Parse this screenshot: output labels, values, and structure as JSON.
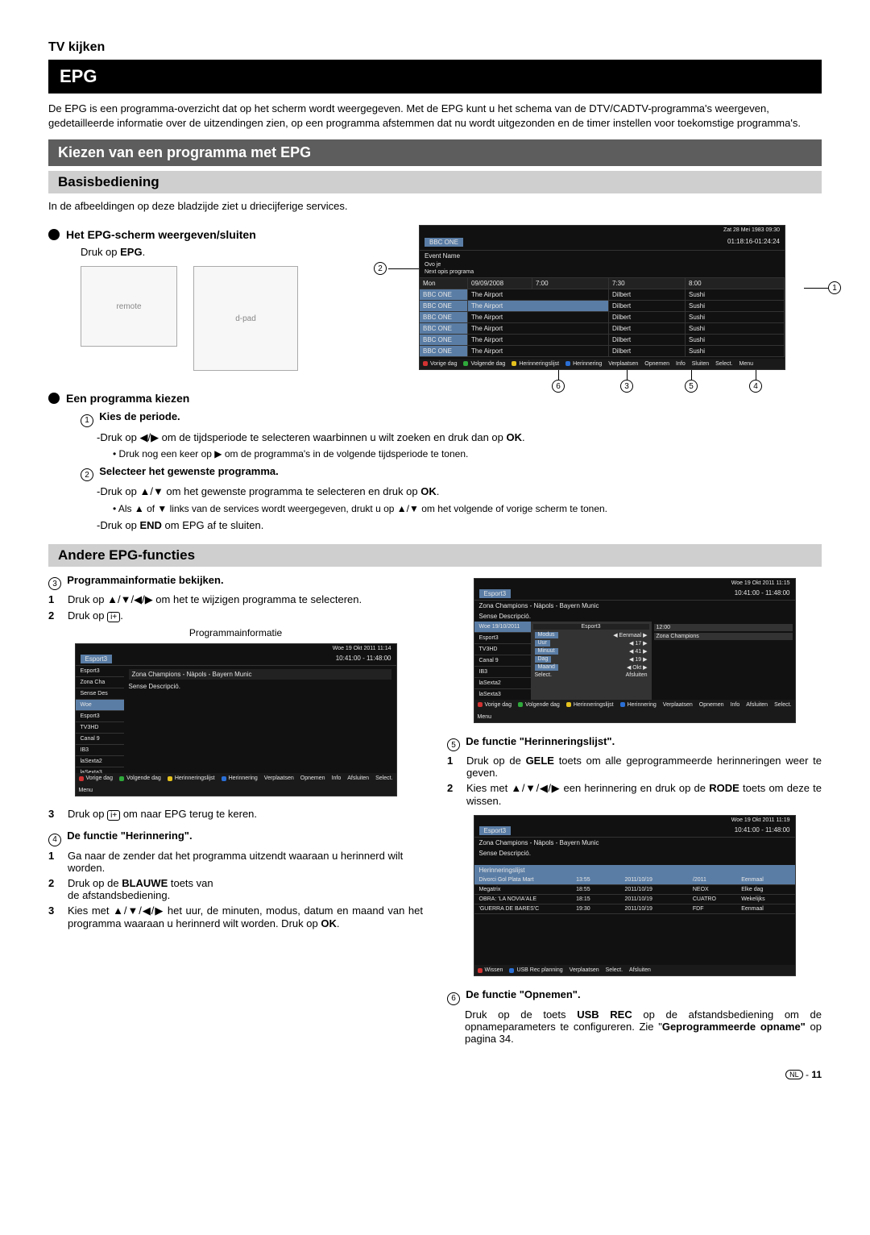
{
  "header": {
    "section": "TV kijken",
    "title": "EPG"
  },
  "intro": "De EPG is een programma-overzicht dat op het scherm wordt weergegeven. Met de EPG kunt u het schema van de DTV/CADTV-programma's weergeven, gedetailleerde informatie over de uitzendingen zien, op een programma afstemmen dat nu wordt uitgezonden en de timer instellen voor toekomstige programma's.",
  "banner1": "Kiezen van een programma met EPG",
  "banner2": "Basisbediening",
  "basis_text": "In de afbeeldingen op deze bladzijde ziet u driecijferige services.",
  "sub1": "Het EPG-scherm weergeven/sluiten",
  "sub1_text_a": "Druk op ",
  "sub1_text_b": "EPG",
  "sub1_text_c": ".",
  "sub2": "Een programma kiezen",
  "step1_label": "Kies de periode.",
  "step1_line1_a": "-Druk op ◀/▶ om de tijdsperiode te selecteren waarbinnen u wilt zoeken en druk dan op ",
  "step1_line1_b": "OK",
  "step1_line1_c": ".",
  "step1_bullet": "Druk nog een keer op ▶ om de programma's in de volgende tijdsperiode te tonen.",
  "step2_label": "Selecteer het gewenste programma.",
  "step2_line1_a": "-Druk op ▲/▼ om het gewenste programma te selecteren en druk op ",
  "step2_line1_b": "OK",
  "step2_line1_c": ".",
  "step2_bullet": "Als ▲ of ▼ links van de services wordt weergegeven, drukt u op ▲/▼ om het volgende of vorige scherm te tonen.",
  "step2_line3_a": "-Druk op ",
  "step2_line3_b": "END",
  "step2_line3_c": " om EPG af te sluiten.",
  "banner3": "Andere EPG-functies",
  "f3_label": "Programmainformatie bekijken.",
  "f3_1": "Druk op ▲/▼/◀/▶ om het te wijzigen programma te selecteren.",
  "f3_2_a": "Druk op ",
  "f3_2_b": ".",
  "f3_caption": "Programmainformatie",
  "f3_3_a": "Druk op ",
  "f3_3_b": " om naar EPG terug te keren.",
  "f4_label": "De functie \"Herinnering\".",
  "f4_1": "Ga naar de zender dat het programma uitzendt waaraan u herinnerd wilt worden.",
  "f4_2_a": "Druk op de ",
  "f4_2_b": "BLAUWE",
  "f4_2_c": " toets van",
  "f4_2d": "de afstandsbediening.",
  "f4_3_a": "Kies met ▲/▼/◀/▶ het uur, de minuten, modus, datum en maand van het programma waaraan u herinnerd wilt worden. Druk op ",
  "f4_3_b": "OK",
  "f4_3_c": ".",
  "f5_label": "De functie \"Herinneringslijst\".",
  "f5_1_a": "Druk op de ",
  "f5_1_b": "GELE",
  "f5_1_c": " toets om alle geprogrammeerde herinneringen weer te geven.",
  "f5_2_a": "Kies met ▲/▼/◀/▶ een herinnering en druk op de ",
  "f5_2_b": "RODE",
  "f5_2_c": " toets om deze te wissen.",
  "f6_label": "De functie \"Opnemen\".",
  "f6_text_a": "Druk op de toets ",
  "f6_text_b": "USB REC",
  "f6_text_c": " op de afstandsbediening om de opnameparameters te configureren. Zie \"",
  "f6_text_d": "Geprogrammeerde opname\"",
  "f6_text_e": " op pagina 34.",
  "page_lang": "NL",
  "page_dash": " - ",
  "page_num": "11",
  "epg": {
    "date": "Zat 28 Mei 1983 09:30",
    "channel": "BBC ONE",
    "timerange": "01:18:16-01:24:24",
    "event": "Event Name",
    "ovoje": "Ovo je",
    "next": "Next opis programa",
    "day": "Mon",
    "fulldate": "09/09/2008",
    "t1": "7:00",
    "t2": "7:30",
    "t3": "8:00",
    "rows": [
      {
        "ch": "BBC ONE",
        "p1": "The Airport",
        "p2": "Dilbert",
        "p3": "Sushi"
      },
      {
        "ch": "BBC ONE",
        "p1": "The Airport",
        "p2": "Dilbert",
        "p3": "Sushi"
      },
      {
        "ch": "BBC ONE",
        "p1": "The Airport",
        "p2": "Dilbert",
        "p3": "Sushi"
      },
      {
        "ch": "BBC ONE",
        "p1": "The Airport",
        "p2": "Dilbert",
        "p3": "Sushi"
      },
      {
        "ch": "BBC ONE",
        "p1": "The Airport",
        "p2": "Dilbert",
        "p3": "Sushi"
      },
      {
        "ch": "BBC ONE",
        "p1": "The Airport",
        "p2": "Dilbert",
        "p3": "Sushi"
      }
    ],
    "footer": {
      "red1": "Vorige dag",
      "green1": "Volgende dag",
      "yellow1": "Herinneringslijst",
      "blue1": "Herinnering",
      "verpl": "Verplaatsen",
      "opn": "Opnemen",
      "info": "Info",
      "sluit": "Sluiten",
      "sel": "Select.",
      "menu": "Menu"
    }
  },
  "screen_a": {
    "date": "Woe 19 Okt 2011 11:14",
    "ch": "Esport3",
    "time": "10:41:00 - 11:48:00",
    "prog": "Zona Champions - Nàpols - Bayern Munic",
    "desc": "Sense Descripció.",
    "day": "Woe",
    "list": [
      "Esport3",
      "Zona Cha",
      "Sense Des",
      "Woe",
      "Esport3",
      "TV3HD",
      "Canal 9",
      "IB3",
      "laSexta2",
      "laSexta3"
    ],
    "footer": {
      "vp": "Vorige dag",
      "vd": "Volgende dag",
      "hl": "Herinneringslijst",
      "h": "Herinnering",
      "ver": "Verplaatsen",
      "opn": "Opnemen",
      "info": "Info",
      "afs": "Afsluiten",
      "sel": "Select.",
      "menu": "Menu"
    }
  },
  "screen_b": {
    "date": "Woe 19 Okt 2011 11:15",
    "ch": "Esport3",
    "time": "10:41:00 - 11:48:00",
    "prog": "Zona Champions - Nàpols - Bayern Munic",
    "desc": "Sense Descripció.",
    "pop": {
      "title": "Esport3",
      "modus": "Modus",
      "eenmaal": "Eenmaal",
      "uur": "Uur",
      "v1": "17",
      "min": "Minuut",
      "v2": "41",
      "dag": "Dag",
      "v3": "19",
      "maand": "Maand",
      "v4": "Okt",
      "sel": "Select.",
      "afs": "Afsluiten",
      "zr": "12:00",
      "zc": "Zona Champions"
    },
    "day": "Woe",
    "fulldate": "19/10/2011",
    "list": [
      "Esport3",
      "TV3HD",
      "Canal 9",
      "IB3",
      "laSexta2",
      "laSexta3"
    ],
    "footer": {
      "vp": "Vorige dag",
      "vd": "Volgende dag",
      "hl": "Herinneringslijst",
      "h": "Herinnering",
      "ver": "Verplaatsen",
      "opn": "Opnemen",
      "info": "Info",
      "afs": "Afsluiten",
      "sel": "Select.",
      "menu": "Menu"
    }
  },
  "screen_c": {
    "date": "Woe 19 Okt 2011 11:19",
    "ch": "Esport3",
    "time": "10:41:00 - 11:48:00",
    "prog": "Zona Champions - Nàpols - Bayern Munic",
    "desc": "Sense Descripció.",
    "hl_title": "Herinneringslijst",
    "rows": [
      {
        "a": "Divorci Gol Plata Mart",
        "b": "13:55",
        "c": "2011/10/19",
        "d": "/2011",
        "e": "Eenmaal"
      },
      {
        "a": "Megatrix",
        "b": "18:55",
        "c": "2011/10/19",
        "d": "NEOX",
        "e": "Elke dag"
      },
      {
        "a": "OBRA: 'LA NOVIA'ALE",
        "b": "18:15",
        "c": "2011/10/19",
        "d": "CUATRO",
        "e": "Wekelijks"
      },
      {
        "a": "'GUERRA DE BARES'C",
        "b": "19:30",
        "c": "2011/10/19",
        "d": "FDF",
        "e": "Eenmaal"
      }
    ],
    "footer": {
      "wis": "Wissen",
      "usb": "USB Rec planning",
      "ver": "Verplaatsen",
      "sel": "Select.",
      "afs": "Afsluiten"
    }
  },
  "colors": {
    "red": "#d23232",
    "green": "#2fa93b",
    "yellow": "#e6c21e",
    "blue": "#2a6fd6",
    "hl": "#5a7da5"
  }
}
